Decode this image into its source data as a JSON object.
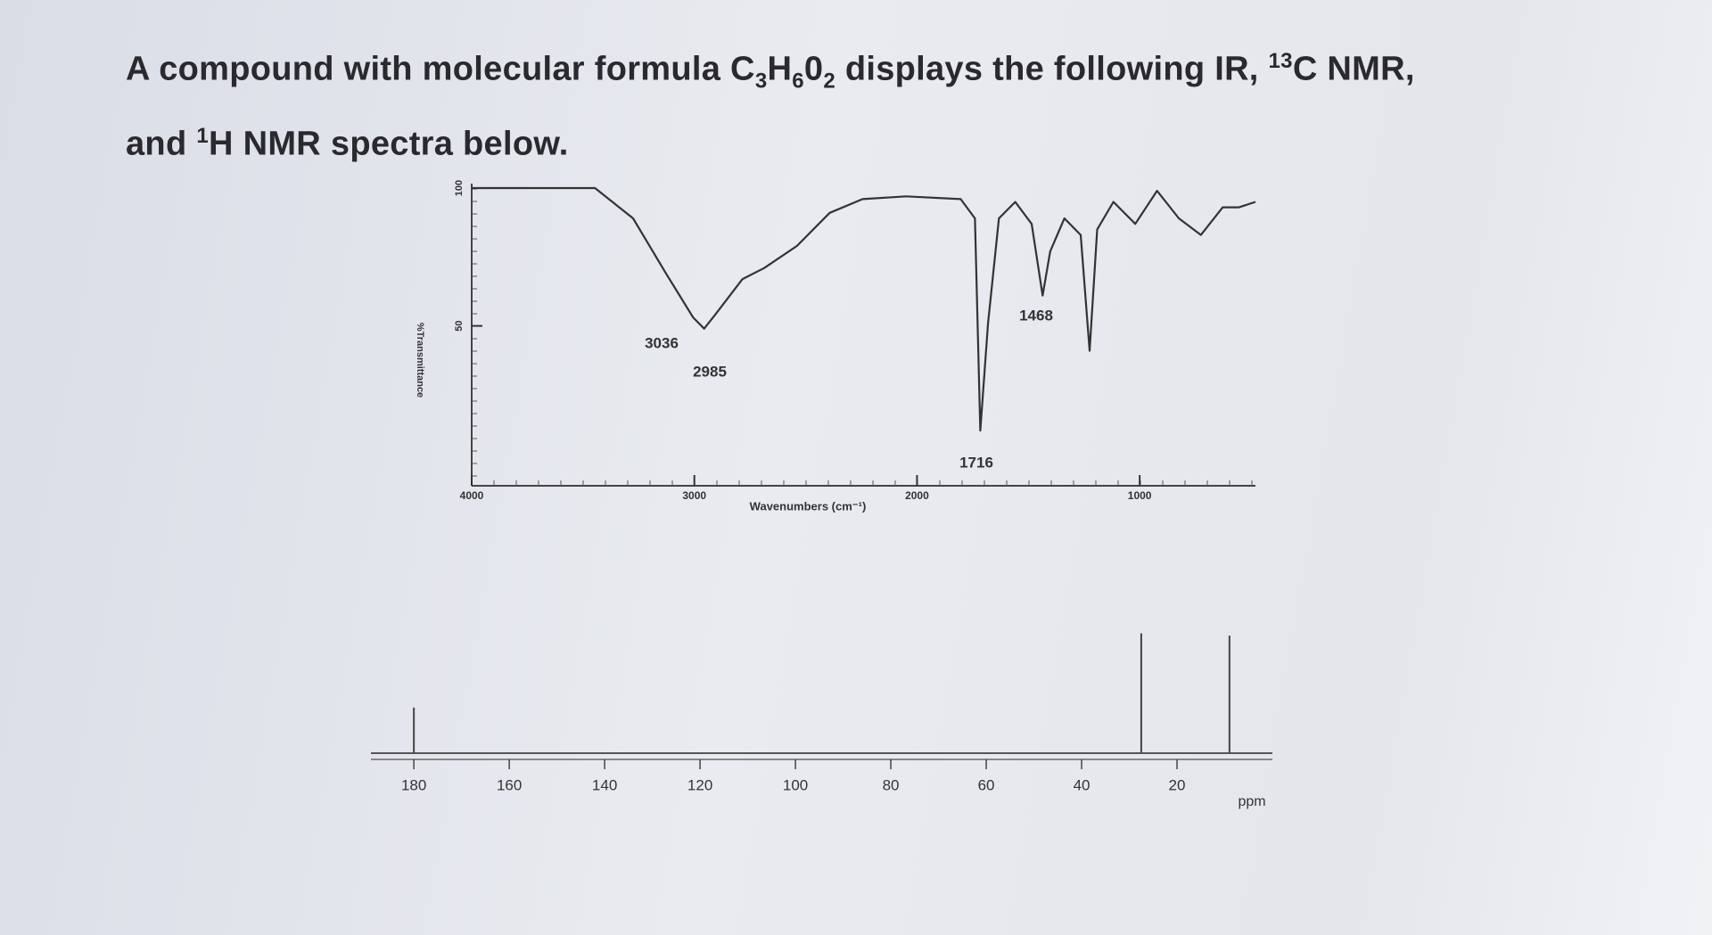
{
  "question": [
    {
      "text": "A compound with molecular formula C"
    },
    {
      "text": "3",
      "style": "sub"
    },
    {
      "text": "H"
    },
    {
      "text": "6",
      "style": "sub"
    },
    {
      "text": "0"
    },
    {
      "text": "2",
      "style": "sub"
    },
    {
      "text": " displays the following IR, "
    },
    {
      "text": "13",
      "style": "sup"
    },
    {
      "text": "C NMR,"
    },
    {
      "text": "and ",
      "style": "break"
    },
    {
      "text": "1",
      "style": "sup"
    },
    {
      "text": "H NMR spectra below."
    }
  ],
  "chart_data": [
    {
      "type": "line",
      "x_label": "Wavenumbers (cm⁻¹)",
      "y_label": "%Transmittance",
      "x": [
        4000,
        3446,
        3275,
        3127,
        3005,
        2956,
        2907,
        2784,
        2686,
        2539,
        2392,
        2245,
        2049,
        1804,
        1740,
        1716,
        1681,
        1632,
        1559,
        1485,
        1436,
        1402,
        1338,
        1265,
        1225,
        1191,
        1118,
        1020,
        922,
        824,
        725,
        627,
        554,
        480
      ],
      "values": [
        100,
        100,
        89,
        69,
        53,
        49,
        54,
        67,
        71,
        79,
        91,
        96,
        97,
        96,
        89,
        12,
        51,
        89,
        95,
        87,
        61,
        77,
        89,
        83,
        41,
        85,
        95,
        87,
        99,
        89,
        83,
        93,
        93,
        95
      ],
      "color": "#333333",
      "xlim": [
        4000,
        480
      ],
      "ylim": [
        -8,
        100
      ],
      "xticks": [
        4000,
        3000,
        2000,
        1000
      ],
      "yticks": [
        50,
        100
      ],
      "annotations": [
        "3036",
        "2985",
        "1716",
        "1468"
      ]
    },
    {
      "type": "stem",
      "x_label": "ppm",
      "x": [
        180,
        27.5,
        9
      ],
      "values": [
        38,
        100,
        98
      ],
      "color": "#444444",
      "xlim": [
        189,
        0
      ],
      "ylim": [
        0,
        110
      ],
      "xticks": [
        180,
        160,
        140,
        120,
        100,
        80,
        60,
        40,
        20
      ]
    }
  ]
}
